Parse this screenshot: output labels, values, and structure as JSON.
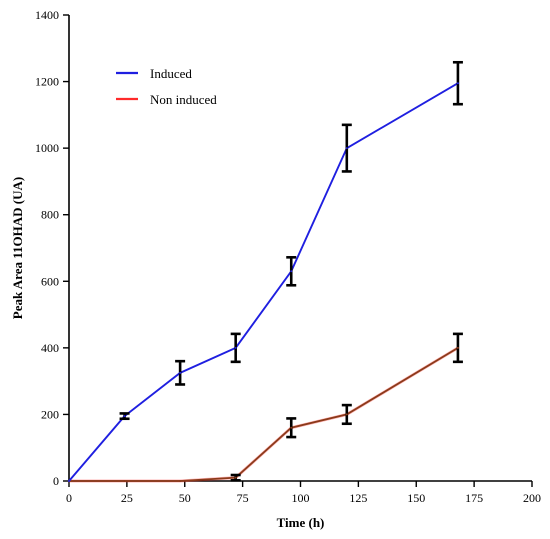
{
  "chart_data": {
    "type": "line",
    "xlabel": "Time (h)",
    "ylabel": "Peak Area 11OHAD (UA)",
    "xlim": [
      0,
      200
    ],
    "ylim": [
      0,
      1400
    ],
    "xticks": [
      0,
      25,
      50,
      75,
      100,
      125,
      150,
      175,
      200
    ],
    "yticks": [
      0,
      200,
      400,
      600,
      800,
      1000,
      1200,
      1400
    ],
    "xtick_labels": [
      "0",
      "25",
      "50",
      "75",
      "100",
      "125",
      "150",
      "175",
      "200"
    ],
    "ytick_labels": [
      "0",
      "200",
      "400",
      "600",
      "800",
      "1000",
      "1200",
      "1400"
    ],
    "grid": false,
    "legend_position": "top-left",
    "series": [
      {
        "name": "Induced",
        "color": "#1f1fe0",
        "x": [
          0,
          24,
          48,
          72,
          96,
          120,
          168
        ],
        "y": [
          0,
          195,
          325,
          400,
          630,
          1000,
          1195
        ],
        "error": [
          0,
          8,
          35,
          42,
          42,
          70,
          63
        ]
      },
      {
        "name": "Non induced",
        "color": "#ff2a2a",
        "line_color": "#8b3a1a",
        "x": [
          0,
          24,
          48,
          72,
          96,
          120,
          168
        ],
        "y": [
          0,
          0,
          0,
          10,
          160,
          200,
          400
        ],
        "error": [
          0,
          0,
          0,
          8,
          28,
          28,
          42
        ]
      }
    ]
  }
}
